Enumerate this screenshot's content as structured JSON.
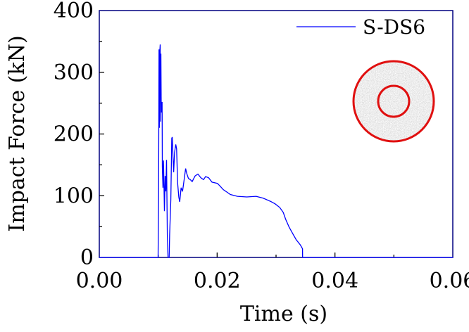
{
  "chart_data": {
    "type": "line",
    "title": "",
    "xlabel": "Time (s)",
    "ylabel": "Impact Force (kN)",
    "xlim": [
      0,
      0.06
    ],
    "ylim": [
      0,
      400
    ],
    "x_ticks": [
      "0.00",
      "0.02",
      "0.04",
      "0.06"
    ],
    "x_tick_values": [
      0,
      0.02,
      0.04,
      0.06
    ],
    "x_minor_ticks": [
      0.01,
      0.03,
      0.05
    ],
    "y_ticks": [
      "0",
      "100",
      "200",
      "300",
      "400"
    ],
    "y_tick_values": [
      0,
      100,
      200,
      300,
      400
    ],
    "y_minor_ticks": [
      50,
      150,
      250,
      350
    ],
    "grid": false,
    "legend_position": "top-right",
    "colors": {
      "series": "#0000ff",
      "axes": "#000080",
      "inset_ring": "#e01010"
    },
    "inset": "concentric-circle-specimen-cross-section",
    "series": [
      {
        "name": "S-DS6",
        "x": [
          0,
          0.00998,
          0.01006,
          0.01014,
          0.0102,
          0.01026,
          0.01034,
          0.0104,
          0.01046,
          0.01052,
          0.01066,
          0.0107,
          0.0108,
          0.0109,
          0.01106,
          0.01118,
          0.0113,
          0.01142,
          0.01154,
          0.01166,
          0.01186,
          0.01194,
          0.01214,
          0.0123,
          0.01238,
          0.01246,
          0.01262,
          0.01278,
          0.01298,
          0.01312,
          0.01329,
          0.01349,
          0.01365,
          0.01389,
          0.01413,
          0.01433,
          0.01465,
          0.01485,
          0.01513,
          0.01545,
          0.01577,
          0.01625,
          0.01673,
          0.01725,
          0.01769,
          0.01805,
          0.01856,
          0.01912,
          0.02004,
          0.02056,
          0.02104,
          0.02164,
          0.02224,
          0.02344,
          0.02503,
          0.02662,
          0.02782,
          0.02902,
          0.02982,
          0.03062,
          0.03122,
          0.03162,
          0.03222,
          0.03281,
          0.03341,
          0.03413,
          0.03449,
          0.0345,
          0.06
        ],
        "y": [
          0,
          0,
          97,
          337,
          210,
          332,
          345,
          220,
          330,
          235,
          252,
          147,
          113,
          157,
          75,
          132,
          107,
          158,
          37,
          0,
          0,
          37,
          94,
          193,
          195,
          178,
          138,
          170,
          183,
          176,
          121,
          98,
          90,
          113,
          107,
          121,
          144,
          136,
          128,
          126,
          123,
          132,
          135,
          129,
          126,
          131,
          129,
          122,
          120,
          115,
          110,
          106,
          102,
          99,
          98,
          99,
          96,
          91,
          87,
          81,
          73,
          62,
          49,
          39,
          29,
          20,
          14,
          0,
          0
        ]
      }
    ]
  }
}
